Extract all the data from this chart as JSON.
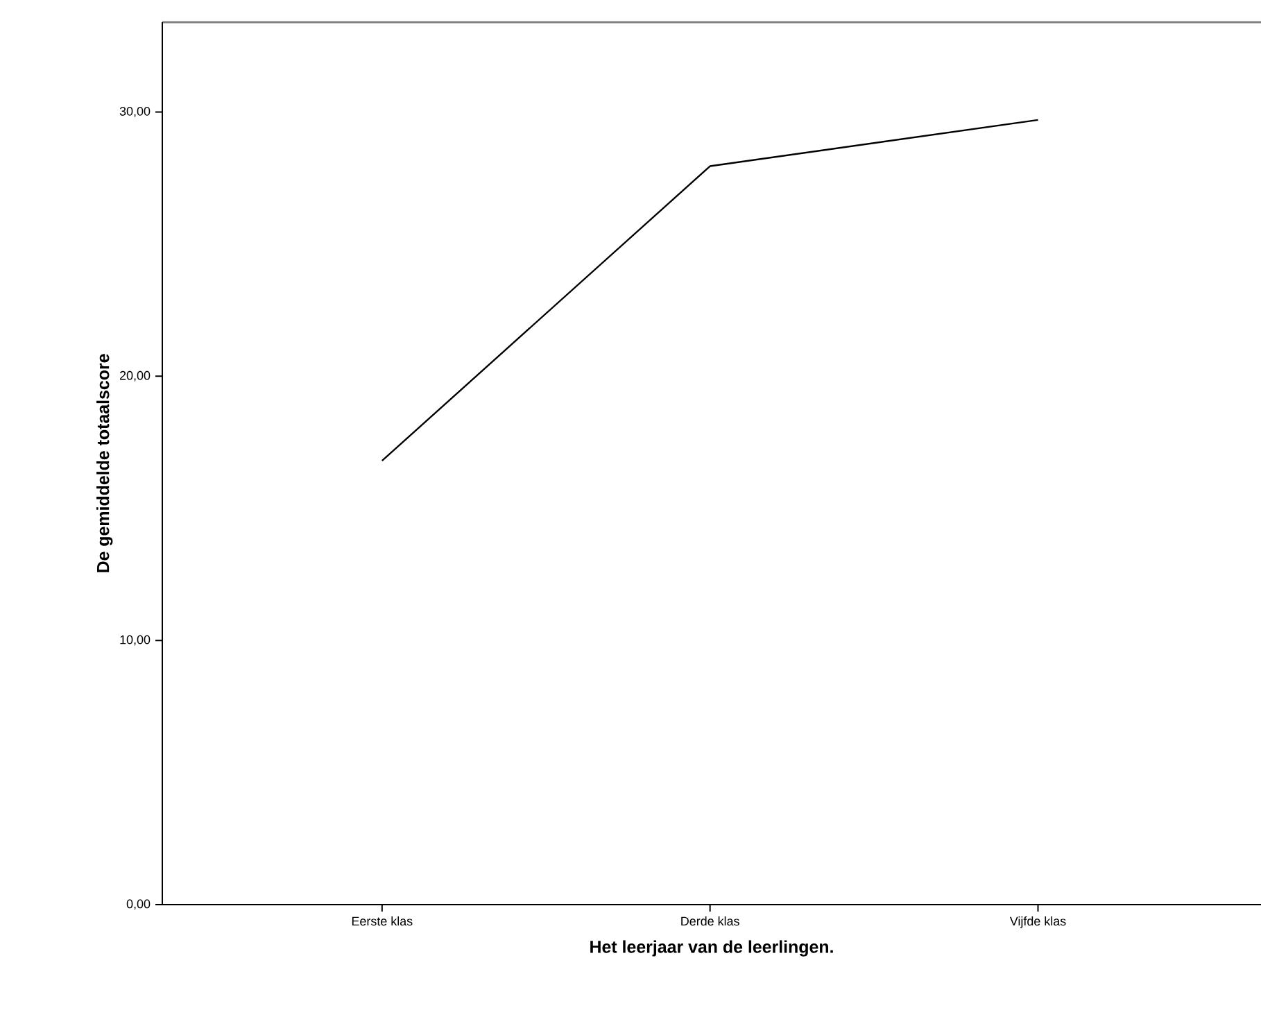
{
  "chart_data": {
    "type": "line",
    "xlabel": "Het leerjaar van de leerlingen.",
    "ylabel": "De gemiddelde totaalscore",
    "categories": [
      "Eerste klas",
      "Derde klas",
      "Vijfde klas"
    ],
    "series": [
      {
        "color": "#000000",
        "values": [
          16.8,
          27.95,
          29.7
        ]
      }
    ],
    "ylim": [
      0,
      33.4
    ],
    "yticks": [
      {
        "value": 0,
        "label": "0,00"
      },
      {
        "value": 10,
        "label": "10,00"
      },
      {
        "value": 20,
        "label": "20,00"
      },
      {
        "value": 30,
        "label": "30,00"
      }
    ],
    "grid": false,
    "marker": "none",
    "line_style": "solid"
  }
}
